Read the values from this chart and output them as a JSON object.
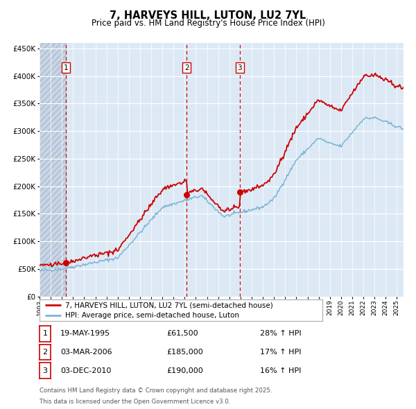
{
  "title": "7, HARVEYS HILL, LUTON, LU2 7YL",
  "subtitle": "Price paid vs. HM Land Registry's House Price Index (HPI)",
  "legend_property": "7, HARVEYS HILL, LUTON, LU2 7YL (semi-detached house)",
  "legend_hpi": "HPI: Average price, semi-detached house, Luton",
  "footer_line1": "Contains HM Land Registry data © Crown copyright and database right 2025.",
  "footer_line2": "This data is licensed under the Open Government Licence v3.0.",
  "transactions": [
    {
      "num": 1,
      "date": "19-MAY-1995",
      "price": "£61,500",
      "hpi_pct": "28% ↑ HPI"
    },
    {
      "num": 2,
      "date": "03-MAR-2006",
      "price": "£185,000",
      "hpi_pct": "17% ↑ HPI"
    },
    {
      "num": 3,
      "date": "03-DEC-2010",
      "price": "£190,000",
      "hpi_pct": "16% ↑ HPI"
    }
  ],
  "sale_dates_decimal": [
    1995.38,
    2006.17,
    2010.92
  ],
  "sale_prices": [
    61500,
    185000,
    190000
  ],
  "property_color": "#cc0000",
  "hpi_color": "#7ab3d4",
  "fig_bg_color": "#ffffff",
  "plot_bg_color": "#dce9f5",
  "grid_color": "#ffffff",
  "dashed_line_color": "#cc0000",
  "ylim": [
    0,
    460000
  ],
  "yticks": [
    0,
    50000,
    100000,
    150000,
    200000,
    250000,
    300000,
    350000,
    400000,
    450000
  ],
  "xlim_start": 1993.0,
  "xlim_end": 2025.6
}
